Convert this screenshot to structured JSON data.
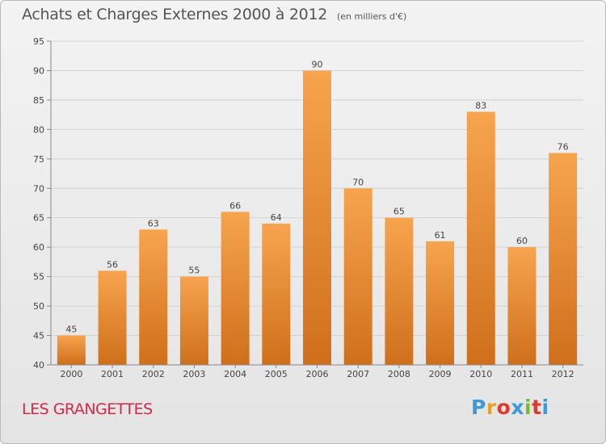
{
  "header": {
    "title": "Achats et Charges Externes 2000 à 2012",
    "subtitle": "(en milliers d'€)"
  },
  "footer": {
    "place": "LES GRANGETTES",
    "logo_letters": [
      "P",
      "r",
      "o",
      "x",
      "i",
      "t",
      "i"
    ],
    "logo_colors": [
      "#3b9ad9",
      "#e8a324",
      "#e03a2e",
      "#3b9ad9",
      "#7dbb2c",
      "#e03a2e",
      "#3b9ad9"
    ]
  },
  "chart_data": {
    "type": "bar",
    "categories": [
      "2000",
      "2001",
      "2002",
      "2003",
      "2004",
      "2005",
      "2006",
      "2007",
      "2008",
      "2009",
      "2010",
      "2011",
      "2012"
    ],
    "values": [
      45,
      56,
      63,
      55,
      66,
      64,
      90,
      70,
      65,
      61,
      83,
      60,
      76
    ],
    "ylim": [
      40,
      95
    ],
    "yticks": [
      40,
      45,
      50,
      55,
      60,
      65,
      70,
      75,
      80,
      85,
      90,
      95
    ],
    "grid": true,
    "bar_color_top": "#f7a44e",
    "bar_color_bottom": "#cf6f1c"
  }
}
